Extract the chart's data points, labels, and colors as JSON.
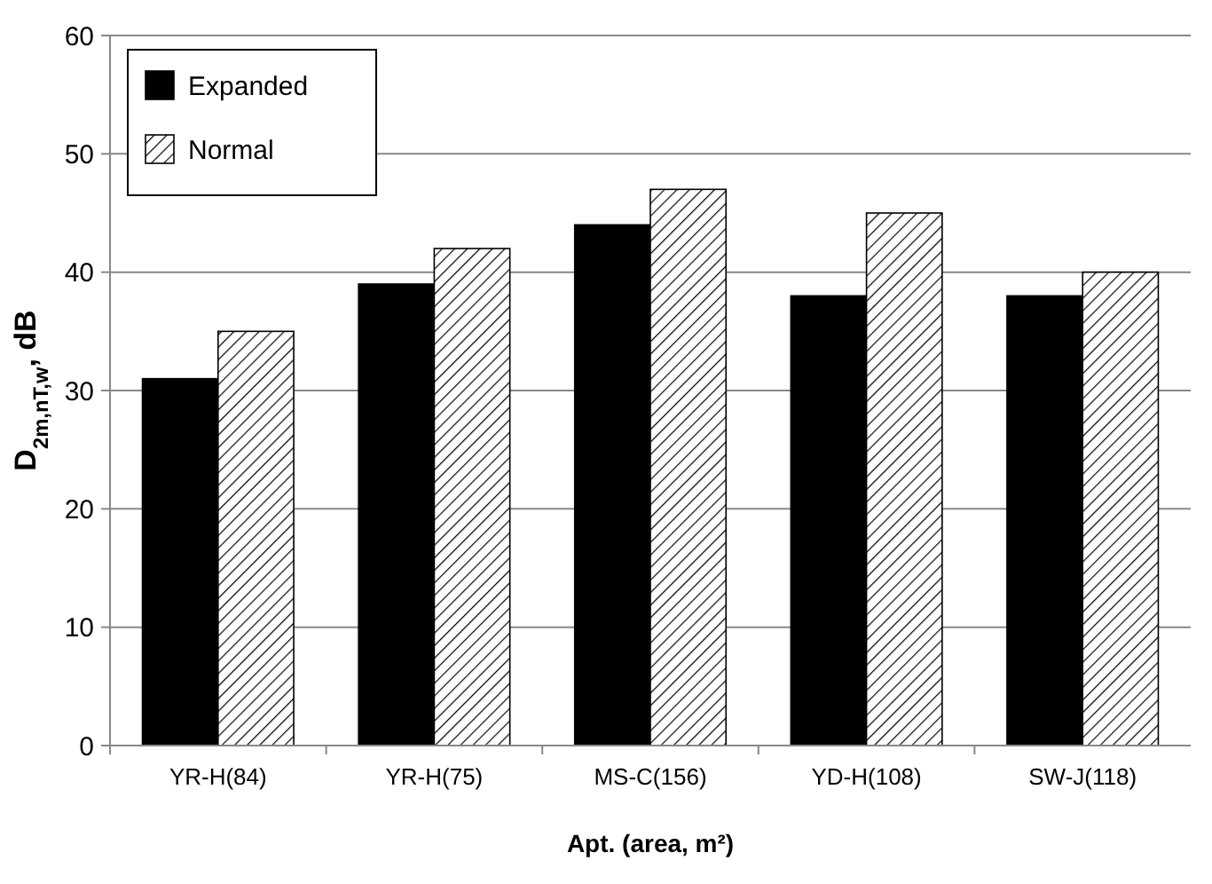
{
  "chart_data": {
    "type": "bar",
    "ylabel": "D$_{2m,nT,w}$, dB",
    "xlabel": "Apt. (area, m²)",
    "categories": [
      "YR-H(84)",
      "YR-H(75)",
      "MS-C(156)",
      "YD-H(108)",
      "SW-J(118)"
    ],
    "series": [
      {
        "name": "Expanded",
        "color": "#000000",
        "values": [
          31,
          39,
          44,
          38,
          38
        ]
      },
      {
        "name": "Normal",
        "color": "#000000",
        "values": [
          35,
          42,
          47,
          45,
          40
        ]
      }
    ],
    "ylim": [
      0,
      60
    ],
    "yticks": [
      0,
      10,
      20,
      30,
      40,
      50,
      60
    ],
    "grid": "y",
    "legend": "top left"
  }
}
